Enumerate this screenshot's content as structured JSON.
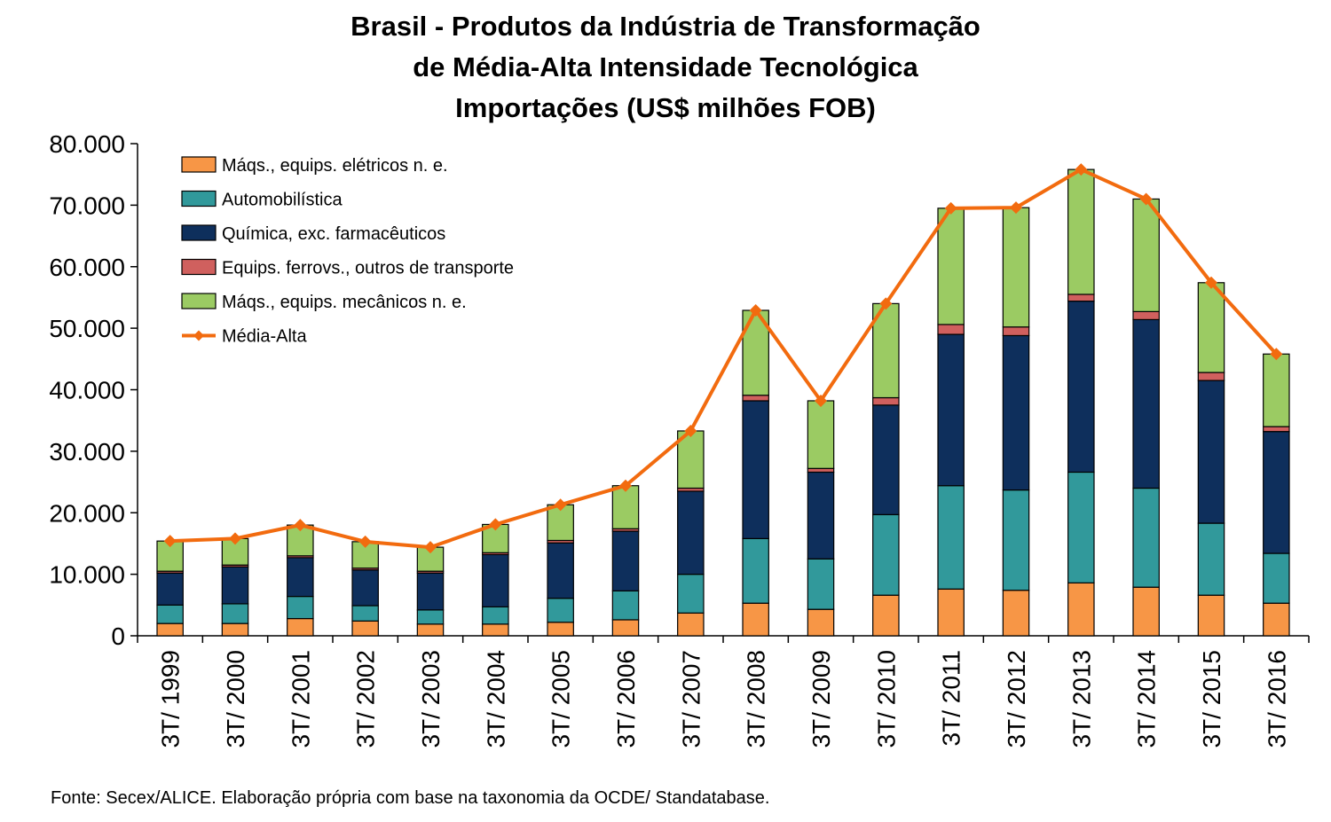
{
  "chart_data": {
    "type": "bar",
    "stacked": true,
    "title": [
      "Brasil - Produtos da Indústria de Transformação",
      "de Média-Alta Intensidade Tecnológica",
      "Importações (US$ milhões FOB)"
    ],
    "categories": [
      "3T/ 1999",
      "3T/ 2000",
      "3T/ 2001",
      "3T/ 2002",
      "3T/ 2003",
      "3T/ 2004",
      "3T/ 2005",
      "3T/ 2006",
      "3T/ 2007",
      "3T/ 2008",
      "3T/ 2009",
      "3T/ 2010",
      "3T/ 2011",
      "3T/ 2012",
      "3T/ 2013",
      "3T/ 2014",
      "3T/ 2015",
      "3T/ 2016"
    ],
    "series": [
      {
        "name": "Máqs., equips. elétricos n. e.",
        "color": "#f79646",
        "values": [
          2000,
          2000,
          2800,
          2400,
          1900,
          1900,
          2200,
          2600,
          3700,
          5300,
          4300,
          6600,
          7600,
          7400,
          8600,
          7900,
          6600,
          5300
        ]
      },
      {
        "name": "Automobilística",
        "color": "#31999b",
        "values": [
          3000,
          3200,
          3600,
          2500,
          2300,
          2800,
          3900,
          4700,
          6300,
          10500,
          8200,
          13100,
          16800,
          16300,
          18000,
          16100,
          11700,
          8100
        ]
      },
      {
        "name": "Química, exc. farmacêuticos",
        "color": "#0e2f5c",
        "values": [
          5200,
          6000,
          6300,
          5800,
          6000,
          8500,
          9000,
          9700,
          13500,
          22400,
          14100,
          17800,
          24600,
          25100,
          27800,
          27400,
          23200,
          19800
        ]
      },
      {
        "name": "Equips. ferrovs., outros de transporte",
        "color": "#d0605e",
        "values": [
          300,
          300,
          300,
          300,
          300,
          300,
          400,
          400,
          500,
          900,
          600,
          1200,
          1600,
          1400,
          1100,
          1300,
          1300,
          800
        ]
      },
      {
        "name": "Máqs., equips. mecânicos  n. e.",
        "color": "#9bcb63",
        "values": [
          4900,
          4300,
          5000,
          4300,
          3900,
          4600,
          5800,
          7000,
          9300,
          13800,
          11000,
          15300,
          18900,
          19400,
          20300,
          18300,
          14600,
          11800
        ]
      }
    ],
    "line_series": {
      "name": "Média-Alta",
      "color": "#f26b0f",
      "values": [
        15400,
        15800,
        18000,
        15300,
        14400,
        18100,
        21300,
        24400,
        33300,
        52900,
        38200,
        54000,
        69500,
        69600,
        75800,
        71000,
        57400,
        45800
      ]
    },
    "ylim": [
      0,
      80000
    ],
    "yticks": [
      0,
      10000,
      20000,
      30000,
      40000,
      50000,
      60000,
      70000,
      80000
    ],
    "ytick_labels": [
      "0",
      "10.000",
      "20.000",
      "30.000",
      "40.000",
      "50.000",
      "60.000",
      "70.000",
      "80.000"
    ],
    "xlabel": "",
    "ylabel": "",
    "legend_position": "top-left",
    "grid": false
  },
  "source_note": "Fonte: Secex/ALICE. Elaboração própria com base na taxonomia da OCDE/ Standatabase."
}
